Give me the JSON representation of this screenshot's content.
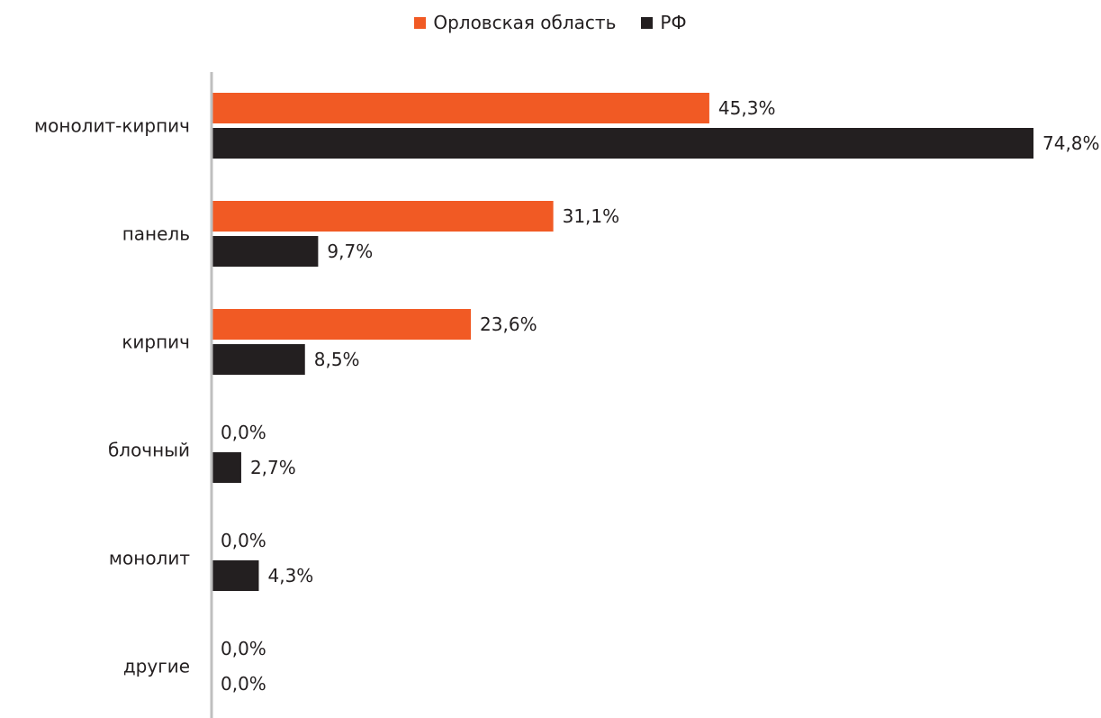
{
  "chart_data": {
    "type": "bar",
    "orientation": "horizontal",
    "categories": [
      "монолит-кирпич",
      "панель",
      "кирпич",
      "блочный",
      "монолит",
      "другие"
    ],
    "series": [
      {
        "name": "Орловская область",
        "color": "#f15a24",
        "values": [
          45.3,
          31.1,
          23.6,
          0.0,
          0.0,
          0.0
        ],
        "labels": [
          "45,3%",
          "31,1%",
          "23,6%",
          "0,0%",
          "0,0%",
          "0,0%"
        ]
      },
      {
        "name": "РФ",
        "color": "#231f20",
        "values": [
          74.8,
          9.7,
          8.5,
          2.7,
          4.3,
          0.0
        ],
        "labels": [
          "74,8%",
          "9,7%",
          "8,5%",
          "2,7%",
          "4,3%",
          "0,0%"
        ]
      }
    ],
    "xlim": [
      0,
      74.8
    ],
    "legend_position": "top-center",
    "grid": false
  }
}
